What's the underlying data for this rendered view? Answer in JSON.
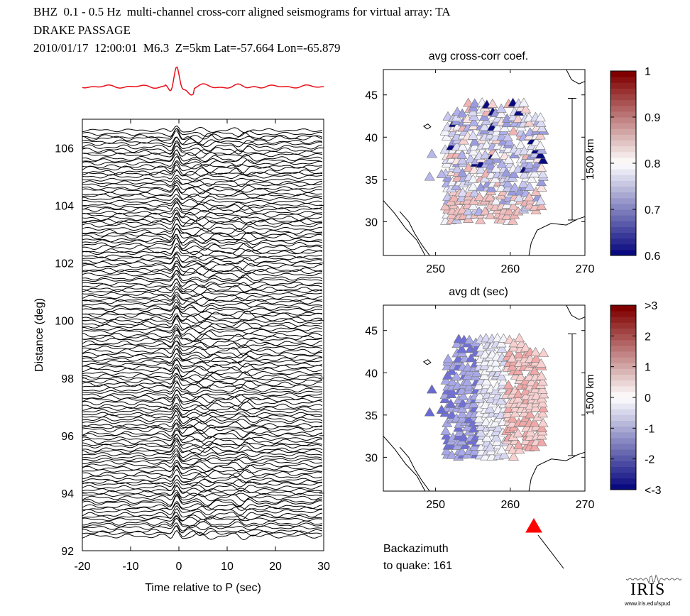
{
  "header": {
    "line1": "BHZ  0.1 - 0.5 Hz  multi-channel cross-corr aligned seismograms for virtual array: TA",
    "line2": "DRAKE PASSAGE",
    "line3": "2010/01/17  12:00:01  M6.3  Z=5km Lat=-57.664 Lon=-65.879"
  },
  "backazimuth": {
    "line1": "Backazimuth",
    "line2": "to quake:  161"
  },
  "logo": {
    "word": "IRIS",
    "url": "www.iris.edu/spud"
  },
  "colors": {
    "stack": "#e8101a",
    "arrow": "#ff0000"
  },
  "chart_data": [
    {
      "type": "line",
      "name": "seismogram record section",
      "xlabel": "Time relative to P (sec)",
      "ylabel": "Distance (deg)",
      "xlim": [
        -20,
        30
      ],
      "ylim": [
        92,
        107
      ],
      "xticks": [
        "-20",
        "-10",
        "0",
        "10",
        "20",
        "30"
      ],
      "yticks": [
        "92",
        "94",
        "96",
        "98",
        "100",
        "102",
        "104",
        "106"
      ],
      "trace_count": 150,
      "trace_distance_range": [
        92.5,
        106.6
      ]
    },
    {
      "type": "scatter",
      "name": "station map - cross-correlation coefficient",
      "title": "avg cross-corr coef.",
      "xlim": [
        243,
        270
      ],
      "ylim": [
        26,
        48
      ],
      "xticks": [
        "250",
        "260",
        "270"
      ],
      "yticks": [
        "30",
        "35",
        "40",
        "45"
      ],
      "scale_bar": "1500 km",
      "colorbar": {
        "min": 0.6,
        "max": 1,
        "ticks": [
          "0.6",
          "0.7",
          "0.8",
          "0.9",
          "1"
        ]
      }
    },
    {
      "type": "scatter",
      "name": "station map - time shift",
      "title": "avg dt (sec)",
      "xlim": [
        243,
        270
      ],
      "ylim": [
        26,
        48
      ],
      "xticks": [
        "250",
        "260",
        "270"
      ],
      "yticks": [
        "30",
        "35",
        "40",
        "45"
      ],
      "scale_bar": "1500 km",
      "colorbar": {
        "min": -3,
        "max": 3,
        "ticks": [
          "<-3",
          "-2",
          "-1",
          "0",
          "1",
          "2",
          ">3"
        ]
      }
    }
  ]
}
